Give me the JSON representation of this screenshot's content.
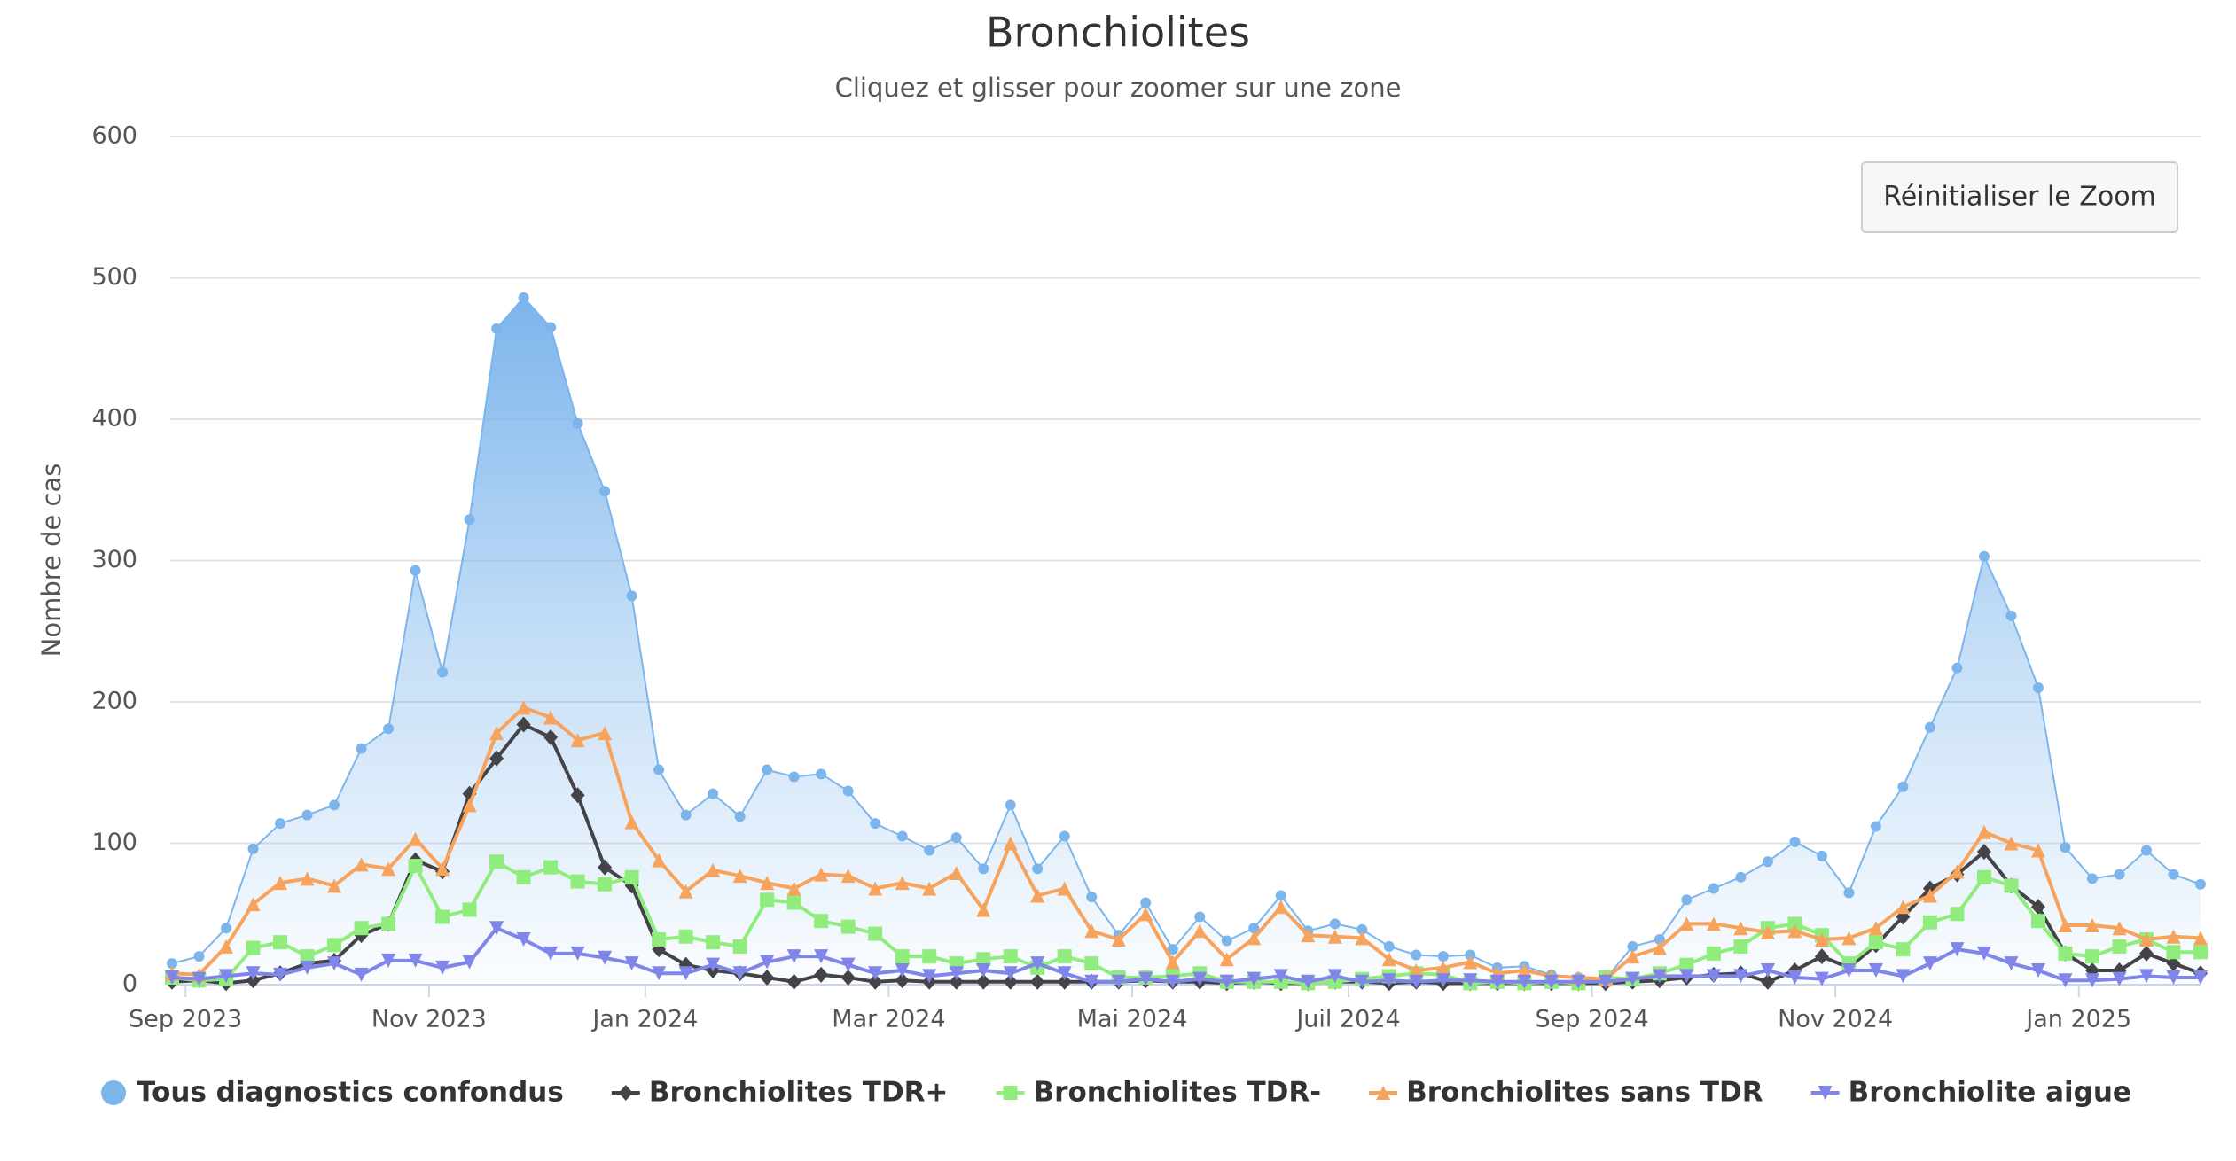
{
  "chart_data": {
    "type": "line",
    "title": "Bronchiolites",
    "subtitle": "Cliquez et glisser pour zoomer sur une zone",
    "y_label": "Nombre de cas",
    "reset_button": "Réinitialiser le Zoom",
    "x": [
      "2023-08",
      "2023-09",
      "2023-09",
      "2023-09",
      "2023-09",
      "2023-10",
      "2023-10",
      "2023-10",
      "2023-10",
      "2023-10",
      "2023-11",
      "2023-11",
      "2023-11",
      "2023-11",
      "2023-12",
      "2023-12",
      "2023-12",
      "2023-12",
      "2024-01",
      "2024-01",
      "2024-01",
      "2024-01",
      "2024-01",
      "2024-02",
      "2024-02",
      "2024-02",
      "2024-02",
      "2024-03",
      "2024-03",
      "2024-03",
      "2024-03",
      "2024-04",
      "2024-04",
      "2024-04",
      "2024-04",
      "2024-04",
      "2024-05",
      "2024-05",
      "2024-05",
      "2024-05",
      "2024-06",
      "2024-06",
      "2024-06",
      "2024-06",
      "2024-07",
      "2024-07",
      "2024-07",
      "2024-07",
      "2024-07",
      "2024-08",
      "2024-08",
      "2024-08",
      "2024-08",
      "2024-09",
      "2024-09",
      "2024-09",
      "2024-09",
      "2024-09",
      "2024-10",
      "2024-10",
      "2024-10",
      "2024-10",
      "2024-11",
      "2024-11",
      "2024-11",
      "2024-11",
      "2024-12",
      "2024-12",
      "2024-12",
      "2024-12",
      "2024-12",
      "2025-01",
      "2025-01",
      "2025-01",
      "2025-01",
      "2025-02"
    ],
    "xticks": [
      {
        "value": "2023-09",
        "label": "Sep 2023"
      },
      {
        "value": "2023-11",
        "label": "Nov 2023"
      },
      {
        "value": "2024-01",
        "label": "Jan 2024"
      },
      {
        "value": "2024-03",
        "label": "Mar 2024"
      },
      {
        "value": "2024-05",
        "label": "Mai 2024"
      },
      {
        "value": "2024-07",
        "label": "Juil 2024"
      },
      {
        "value": "2024-09",
        "label": "Sep 2024"
      },
      {
        "value": "2024-11",
        "label": "Nov 2024"
      },
      {
        "value": "2025-01",
        "label": "Jan 2025"
      }
    ],
    "ylim": [
      0,
      600
    ],
    "yticks": [
      0,
      100,
      200,
      300,
      400,
      500,
      600
    ],
    "grid": true,
    "legend": "bottom",
    "series": [
      {
        "name": "Tous diagnostics confondus",
        "type": "area",
        "marker": "circle",
        "color": "#7cb5ec",
        "values": [
          15,
          20,
          40,
          96,
          114,
          120,
          127,
          167,
          181,
          293,
          221,
          329,
          464,
          486,
          465,
          397,
          349,
          275,
          152,
          120,
          135,
          119,
          152,
          147,
          149,
          137,
          114,
          105,
          95,
          104,
          82,
          127,
          82,
          105,
          62,
          35,
          58,
          25,
          48,
          31,
          40,
          63,
          38,
          43,
          39,
          27,
          21,
          20,
          21,
          12,
          13,
          7,
          5,
          4,
          27,
          32,
          60,
          68,
          76,
          87,
          101,
          91,
          65,
          112,
          140,
          182,
          224,
          303,
          261,
          210,
          97,
          75,
          78,
          95,
          78,
          71
        ]
      },
      {
        "name": "Bronchiolites TDR+",
        "type": "line",
        "marker": "diamond",
        "color": "#434348",
        "values": [
          2,
          3,
          1,
          3,
          8,
          15,
          17,
          35,
          43,
          88,
          80,
          135,
          160,
          184,
          175,
          134,
          83,
          70,
          25,
          14,
          10,
          8,
          5,
          2,
          7,
          5,
          2,
          3,
          2,
          2,
          2,
          2,
          2,
          2,
          2,
          2,
          3,
          2,
          2,
          1,
          2,
          1,
          1,
          2,
          2,
          1,
          2,
          1,
          1,
          1,
          1,
          1,
          1,
          1,
          2,
          3,
          5,
          7,
          8,
          2,
          10,
          20,
          12,
          28,
          48,
          68,
          78,
          94,
          70,
          55,
          22,
          10,
          10,
          22,
          15,
          8
        ]
      },
      {
        "name": "Bronchiolites TDR-",
        "type": "line",
        "marker": "square",
        "color": "#90ed7d",
        "values": [
          5,
          3,
          4,
          26,
          30,
          20,
          28,
          40,
          43,
          84,
          48,
          53,
          87,
          76,
          83,
          73,
          71,
          76,
          32,
          34,
          30,
          27,
          60,
          58,
          45,
          41,
          36,
          20,
          20,
          15,
          18,
          20,
          12,
          20,
          15,
          5,
          5,
          6,
          8,
          2,
          2,
          2,
          1,
          2,
          4,
          6,
          8,
          7,
          1,
          2,
          1,
          2,
          1,
          5,
          4,
          8,
          14,
          22,
          27,
          40,
          43,
          35,
          15,
          30,
          25,
          44,
          50,
          76,
          70,
          45,
          22,
          20,
          27,
          32,
          23,
          23
        ]
      },
      {
        "name": "Bronchiolites sans TDR",
        "type": "line",
        "marker": "triangle",
        "color": "#f7a35c",
        "values": [
          8,
          7,
          27,
          57,
          72,
          75,
          70,
          85,
          82,
          103,
          82,
          127,
          178,
          196,
          189,
          173,
          178,
          115,
          88,
          66,
          81,
          77,
          72,
          68,
          78,
          77,
          68,
          72,
          68,
          79,
          53,
          100,
          63,
          68,
          38,
          32,
          50,
          16,
          38,
          18,
          33,
          55,
          35,
          34,
          33,
          18,
          10,
          12,
          16,
          8,
          10,
          6,
          5,
          4,
          20,
          26,
          43,
          43,
          40,
          37,
          38,
          32,
          33,
          40,
          55,
          63,
          80,
          108,
          100,
          95,
          42,
          42,
          40,
          32,
          34,
          33
        ]
      },
      {
        "name": "Bronchiolite aigue",
        "type": "line",
        "marker": "triangle-down",
        "color": "#8085e9",
        "values": [
          5,
          4,
          6,
          8,
          7,
          12,
          15,
          7,
          17,
          17,
          12,
          16,
          40,
          32,
          22,
          22,
          19,
          15,
          8,
          8,
          14,
          8,
          16,
          20,
          20,
          14,
          8,
          10,
          6,
          8,
          10,
          8,
          15,
          8,
          2,
          2,
          4,
          2,
          4,
          2,
          4,
          6,
          2,
          6,
          2,
          3,
          2,
          3,
          3,
          2,
          2,
          2,
          2,
          2,
          4,
          6,
          6,
          6,
          6,
          10,
          5,
          4,
          10,
          10,
          6,
          15,
          25,
          22,
          15,
          10,
          3,
          3,
          4,
          6,
          5,
          5
        ]
      }
    ]
  }
}
